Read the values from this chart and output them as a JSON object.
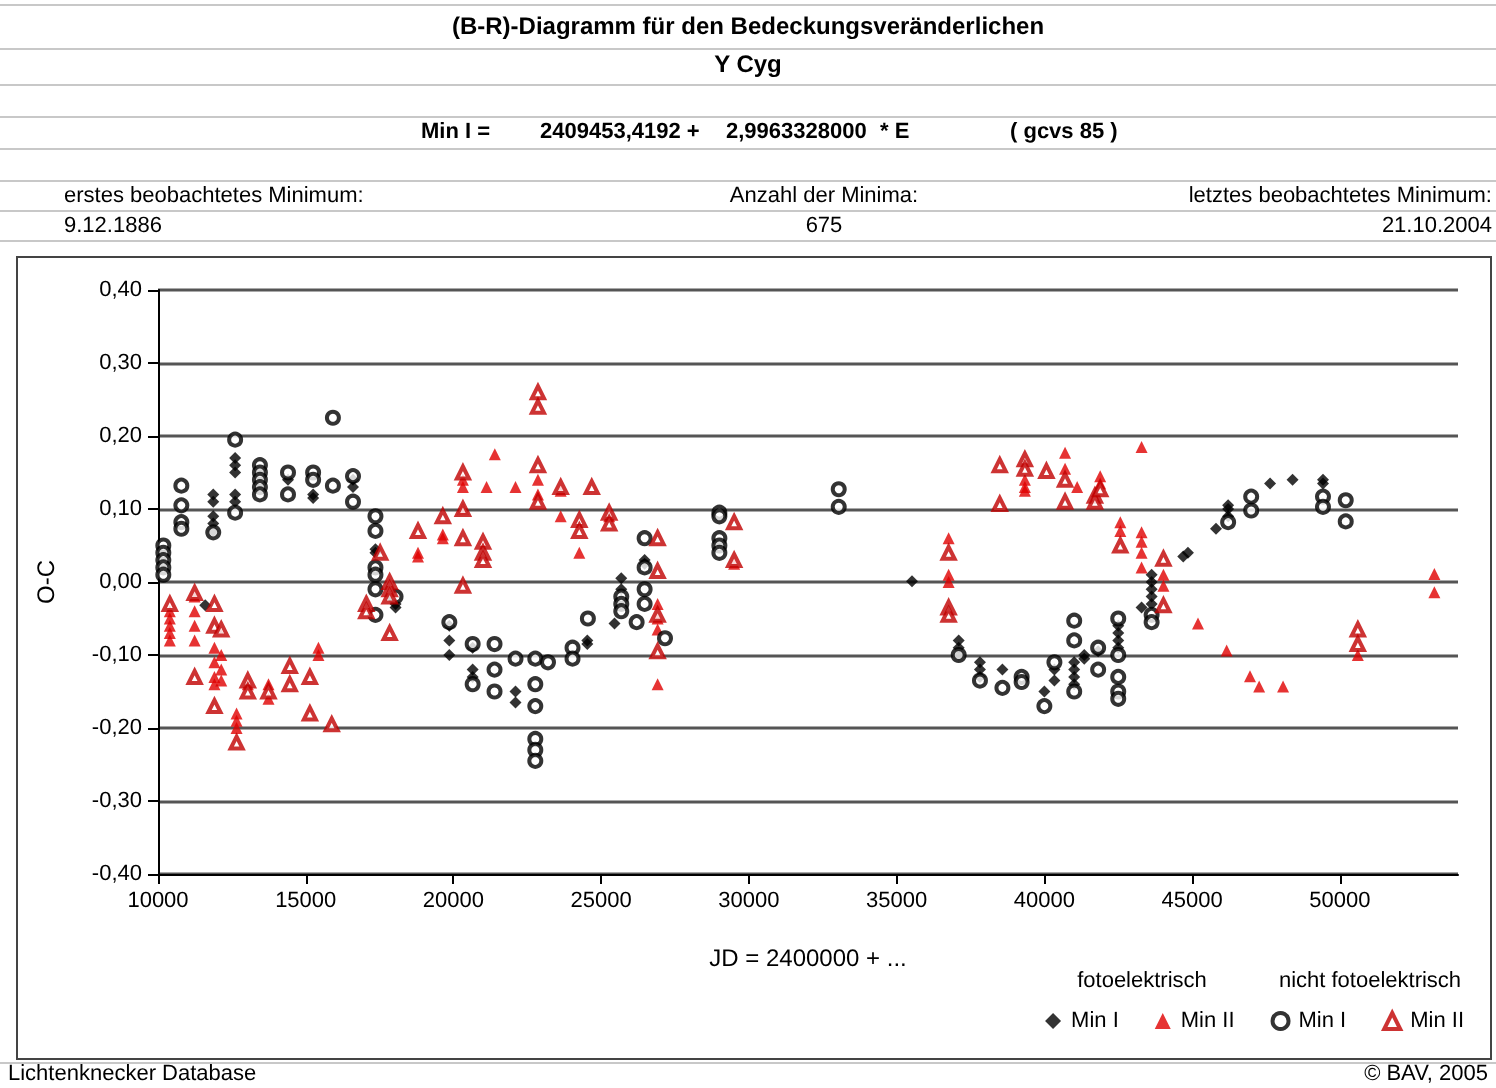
{
  "chart_data": {
    "type": "scatter",
    "title": "(B-R)-Diagramm für den Bedeckungsveränderlichen",
    "subtitle": "Y Cyg",
    "xlabel": "JD = 2400000 + ...",
    "ylabel": "O-C",
    "annotations": [
      "Min I =",
      "2409453,4192 +",
      "2,9963328000",
      "* E",
      "( gcvs 85 )",
      "erstes beobachtetes Minimum:",
      "9.12.1886",
      "Anzahl der Minima:",
      "675",
      "letztes beobachtetes Minimum:",
      "21.10.2004",
      "fotoelektrisch",
      "nicht fotoelektrisch",
      "Lichtenknecker Database",
      "© BAV, 2005"
    ],
    "xlim": [
      10000,
      54000
    ],
    "xticks": [
      10000,
      15000,
      20000,
      25000,
      30000,
      35000,
      40000,
      45000,
      50000
    ],
    "ylim": [
      -0.4,
      0.4
    ],
    "yticks": [
      {
        "value": 0.4,
        "label": "0,40"
      },
      {
        "value": 0.3,
        "label": "0,30"
      },
      {
        "value": 0.2,
        "label": "0,20"
      },
      {
        "value": 0.1,
        "label": "0,10"
      },
      {
        "value": 0,
        "label": "0,00"
      },
      {
        "value": -0.1,
        "label": "-0,10"
      },
      {
        "value": -0.2,
        "label": "-0,20"
      },
      {
        "value": -0.3,
        "label": "-0,30"
      },
      {
        "value": -0.4,
        "label": "-0,40"
      }
    ],
    "grid": "y",
    "legend": "bottom right",
    "series": [
      {
        "name": "Min I",
        "color": "#000000",
        "marker": "diamond",
        "x": [
          11600,
          11870,
          11870,
          11870,
          11870,
          11870,
          12610,
          12610,
          12610,
          12610,
          12610,
          14400,
          15250,
          15250,
          16600,
          16600,
          17360,
          17360,
          18040,
          18040,
          19860,
          19860,
          19860,
          20650,
          20650,
          20650,
          22100,
          22100,
          24530,
          24530,
          25450,
          25680,
          25680,
          26470,
          26470,
          35520,
          37100,
          37100,
          37100,
          37820,
          37820,
          37820,
          38580,
          40000,
          40340,
          40340,
          41010,
          41010,
          41010,
          41010,
          41350,
          41350,
          41820,
          42500,
          42500,
          42500,
          42500,
          43290,
          43630,
          43630,
          43630,
          43630,
          43630,
          44700,
          44860,
          45810,
          46220,
          46220,
          46220,
          47640,
          48400,
          49430,
          49430
        ],
        "values": [
          -0.032,
          0.12,
          0.11,
          0.09,
          0.08,
          0.07,
          0.17,
          0.16,
          0.15,
          0.12,
          0.11,
          0.14,
          0.12,
          0.115,
          0.14,
          0.13,
          0.045,
          0.04,
          -0.03,
          -0.035,
          -0.06,
          -0.08,
          -0.1,
          -0.09,
          -0.12,
          -0.13,
          -0.15,
          -0.165,
          -0.08,
          -0.085,
          -0.057,
          0.005,
          -0.01,
          0.03,
          0.025,
          0.001,
          -0.08,
          -0.09,
          -0.1,
          -0.11,
          -0.12,
          -0.13,
          -0.12,
          -0.15,
          -0.12,
          -0.135,
          -0.11,
          -0.12,
          -0.13,
          -0.14,
          -0.1,
          -0.105,
          -0.095,
          -0.06,
          -0.07,
          -0.08,
          -0.09,
          -0.035,
          0.01,
          0,
          -0.01,
          -0.02,
          -0.03,
          0.035,
          0.04,
          0.073,
          0.09,
          0.1,
          0.105,
          0.135,
          0.14,
          0.14,
          0.135
        ]
      },
      {
        "name": "Min II",
        "color": "#e00000",
        "marker": "triangle",
        "x": [
          10400,
          10400,
          10400,
          10400,
          10400,
          11240,
          11240,
          11240,
          11240,
          11910,
          11910,
          11910,
          11910,
          12140,
          12140,
          12140,
          12660,
          12660,
          12660,
          13040,
          13740,
          13740,
          15430,
          15430,
          18800,
          18800,
          19640,
          19640,
          20320,
          20320,
          20320,
          21120,
          21400,
          22100,
          22860,
          22860,
          23630,
          23630,
          24260,
          25270,
          26910,
          26910,
          26910,
          26910,
          29500,
          36760,
          36760,
          36760,
          39340,
          39340,
          39340,
          40700,
          40700,
          41110,
          41890,
          41890,
          42570,
          42570,
          43290,
          43290,
          43290,
          43290,
          43290,
          44030,
          44030,
          45200,
          46170,
          46960,
          47270,
          48080,
          50610,
          53200,
          53200
        ],
        "values": [
          -0.04,
          -0.05,
          -0.06,
          -0.07,
          -0.08,
          -0.02,
          -0.04,
          -0.06,
          -0.08,
          -0.09,
          -0.11,
          -0.13,
          -0.14,
          -0.1,
          -0.12,
          -0.135,
          -0.18,
          -0.19,
          -0.2,
          -0.14,
          -0.14,
          -0.16,
          -0.09,
          -0.1,
          0.04,
          0.035,
          0.065,
          0.06,
          0.14,
          0.13,
          0.1,
          0.13,
          0.175,
          0.13,
          0.14,
          0.12,
          0.125,
          0.09,
          0.04,
          0.09,
          -0.03,
          -0.05,
          -0.065,
          -0.14,
          0.025,
          0.06,
          0.01,
          0,
          0.14,
          0.13,
          0.125,
          0.177,
          0.155,
          0.13,
          0.145,
          0.135,
          0.082,
          0.07,
          0.185,
          0.068,
          0.055,
          0.04,
          0.02,
          0.01,
          -0.005,
          -0.057,
          -0.094,
          -0.129,
          -0.143,
          -0.143,
          -0.1,
          0.011,
          -0.014
        ]
      },
      {
        "name": "Min I",
        "color": "#000000",
        "marker": "circle",
        "x": [
          10180,
          10180,
          10180,
          10180,
          10180,
          10790,
          10790,
          10790,
          10790,
          11870,
          12610,
          12610,
          13450,
          13450,
          13450,
          13450,
          13450,
          14400,
          14400,
          15250,
          15250,
          15920,
          15920,
          16600,
          16600,
          17360,
          17360,
          17360,
          17360,
          17360,
          17360,
          18040,
          19860,
          20650,
          20650,
          21390,
          21390,
          21390,
          22100,
          22770,
          22770,
          22770,
          22770,
          22770,
          22770,
          23200,
          24030,
          24030,
          24550,
          25680,
          25680,
          25680,
          26200,
          26470,
          26470,
          26470,
          26470,
          27160,
          29000,
          29000,
          29000,
          29000,
          29000,
          33040,
          33040,
          37100,
          37820,
          38580,
          39230,
          39230,
          40000,
          40340,
          41010,
          41010,
          41010,
          41820,
          41820,
          42500,
          42500,
          42500,
          42500,
          42500,
          43630,
          43630,
          46220,
          47000,
          47000,
          49430,
          49430,
          50200,
          50200
        ],
        "values": [
          0.05,
          0.04,
          0.03,
          0.02,
          0.01,
          0.132,
          0.105,
          0.082,
          0.073,
          0.068,
          0.195,
          0.095,
          0.16,
          0.15,
          0.14,
          0.13,
          0.12,
          0.15,
          0.12,
          0.15,
          0.14,
          0.225,
          0.132,
          0.145,
          0.11,
          0.09,
          0.07,
          0.02,
          0.01,
          -0.01,
          -0.045,
          -0.02,
          -0.055,
          -0.085,
          -0.14,
          -0.085,
          -0.12,
          -0.15,
          -0.105,
          -0.105,
          -0.14,
          -0.17,
          -0.215,
          -0.23,
          -0.245,
          -0.11,
          -0.09,
          -0.105,
          -0.05,
          -0.02,
          -0.03,
          -0.04,
          -0.055,
          0.06,
          0.02,
          -0.01,
          -0.03,
          -0.077,
          0.095,
          0.09,
          0.06,
          0.05,
          0.04,
          0.127,
          0.103,
          -0.1,
          -0.135,
          -0.145,
          -0.13,
          -0.137,
          -0.17,
          -0.11,
          -0.053,
          -0.08,
          -0.15,
          -0.09,
          -0.12,
          -0.05,
          -0.1,
          -0.13,
          -0.15,
          -0.16,
          -0.045,
          -0.055,
          0.082,
          0.117,
          0.098,
          0.117,
          0.103,
          0.112,
          0.083
        ]
      },
      {
        "name": "Min II",
        "color": "#c00000",
        "marker": "triangle",
        "x": [
          10400,
          11240,
          11240,
          11910,
          11910,
          11910,
          12140,
          12660,
          13040,
          13040,
          13740,
          14460,
          14460,
          15140,
          15140,
          15880,
          17050,
          17050,
          17520,
          17840,
          17840,
          17840,
          17840,
          18800,
          19640,
          20320,
          20320,
          20320,
          20320,
          21000,
          21000,
          21000,
          22860,
          22860,
          22860,
          22860,
          23630,
          24260,
          24260,
          24680,
          25270,
          25270,
          26910,
          26910,
          26910,
          26910,
          29500,
          29500,
          36760,
          36760,
          36760,
          38490,
          38490,
          39340,
          39340,
          40070,
          40700,
          40700,
          41710,
          41710,
          41890,
          42570,
          44030,
          44030,
          50610,
          50610
        ],
        "values": [
          -0.03,
          -0.015,
          -0.13,
          -0.03,
          -0.06,
          -0.17,
          -0.065,
          -0.22,
          -0.135,
          -0.15,
          -0.15,
          -0.115,
          -0.14,
          -0.13,
          -0.18,
          -0.195,
          -0.03,
          -0.04,
          0.04,
          0,
          -0.01,
          -0.02,
          -0.07,
          0.07,
          0.09,
          0.15,
          0.1,
          0.06,
          -0.005,
          0.055,
          0.04,
          0.03,
          0.26,
          0.24,
          0.16,
          0.11,
          0.13,
          0.085,
          0.07,
          0.13,
          0.095,
          0.08,
          0.06,
          0.015,
          -0.045,
          -0.095,
          0.082,
          0.03,
          0.04,
          -0.035,
          -0.045,
          0.16,
          0.107,
          0.168,
          0.155,
          0.152,
          0.14,
          0.11,
          0.118,
          0.11,
          0.127,
          0.05,
          0.032,
          -0.032,
          -0.065,
          -0.085
        ]
      }
    ]
  }
}
